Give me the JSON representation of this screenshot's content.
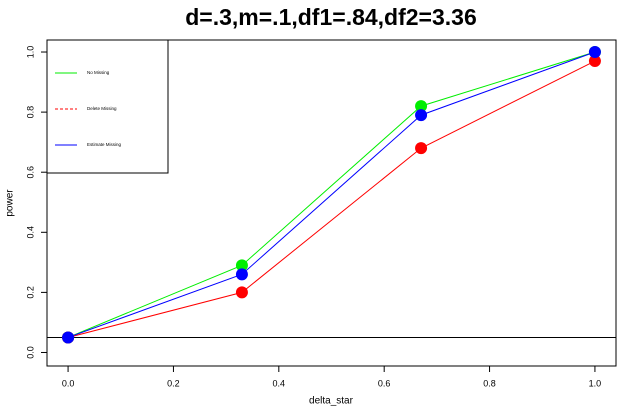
{
  "chart_data": {
    "type": "line",
    "title": "d=.3,m=.1,df1=.84,df2=3.36",
    "x_label": "delta_star",
    "y_label": "power",
    "x": [
      0,
      0.33,
      0.67,
      1
    ],
    "series": [
      {
        "name": "No Missing",
        "color": "#00ee00",
        "legend_line": "solid",
        "values": [
          0.05,
          0.29,
          0.82,
          1.0
        ]
      },
      {
        "name": "Delete Missing",
        "color": "#ff0000",
        "legend_line": "dashed",
        "values": [
          0.05,
          0.2,
          0.68,
          0.97
        ]
      },
      {
        "name": "Estimate Missing",
        "color": "#0000ff",
        "legend_line": "solid",
        "values": [
          0.05,
          0.26,
          0.79,
          1.0
        ]
      }
    ],
    "hline": 0.05,
    "xlim": [
      -0.04,
      1.04
    ],
    "ylim": [
      -0.045,
      1.04
    ],
    "xticks": [
      {
        "value": 0,
        "label": "0.0"
      },
      0.2,
      0.4,
      0.6,
      0.8,
      {
        "value": 1,
        "label": "1.0"
      }
    ],
    "yticks": [
      {
        "value": 0,
        "label": "0.0"
      },
      0.2,
      0.4,
      0.6,
      0.8,
      {
        "value": 1,
        "label": "1.0"
      }
    ],
    "legend": "top-left"
  }
}
